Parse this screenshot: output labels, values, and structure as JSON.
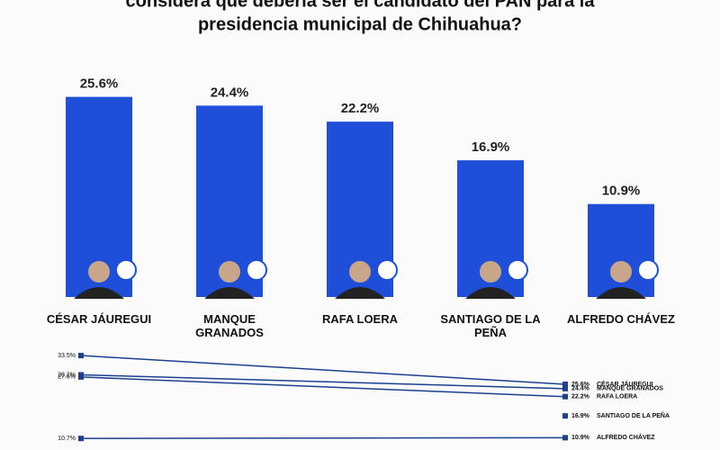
{
  "chart_data": [
    {
      "type": "bar",
      "title": [
        "considera que debería ser el candidato del PAN para la",
        "presidencia municipal de Chihuahua?"
      ],
      "categories": [
        "CÉSAR JÁUREGUI",
        "MANQUE GRANADOS",
        "RAFA LOERA",
        "SANTIAGO DE LA PEÑA",
        "ALFREDO CHÁVEZ"
      ],
      "values": [
        25.6,
        24.4,
        22.2,
        16.9,
        10.9
      ],
      "value_labels": [
        "25.6%",
        "24.4%",
        "22.2%",
        "16.9%",
        "10.9%"
      ],
      "color": "#1f4fd8",
      "ylim": [
        0,
        30
      ]
    },
    {
      "type": "line",
      "categories": [
        null,
        null
      ],
      "ylim": [
        10,
        35
      ],
      "series": [
        {
          "name": "CÉSAR JÁUREGUI",
          "color": "#1d3f8f",
          "values": [
            33.5,
            25.6
          ],
          "value_labels": [
            "33.5%",
            "25.6%"
          ]
        },
        {
          "name": "MANQUE GRANADOS",
          "color": "#1d3f8f",
          "values": [
            28.2,
            24.4
          ],
          "value_labels": [
            "28.2%",
            "24.4%"
          ]
        },
        {
          "name": "RAFA LOERA",
          "color": "#1d3f8f",
          "values": [
            27.6,
            22.2
          ],
          "value_labels": [
            "27.6%",
            "22.2%"
          ]
        },
        {
          "name": "SANTIAGO DE LA PEÑA",
          "color": "#1d3f8f",
          "values": [
            null,
            16.9
          ],
          "value_labels": [
            null,
            "16.9%"
          ]
        },
        {
          "name": "ALFREDO CHÁVEZ",
          "color": "#1d3f8f",
          "values": [
            10.7,
            10.9
          ],
          "value_labels": [
            "10.7%",
            "10.9%"
          ]
        }
      ]
    }
  ]
}
